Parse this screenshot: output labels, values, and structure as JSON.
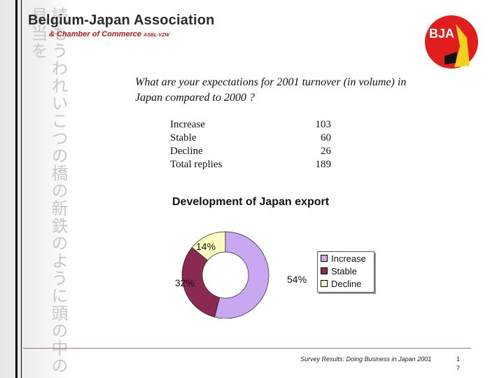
{
  "header": {
    "association_name": "Belgium-Japan Association",
    "association_sub": "& Chamber of Commerce",
    "association_sub_small": "ASBL-VZW",
    "logo_text": "BJA",
    "calligraphy": "読もうわれいこつの橋の新鉄のように頭の中の見当を"
  },
  "question": {
    "text": "What are your expectations for 2001 turnover (in volume) in Japan compared to 2000 ?"
  },
  "table": {
    "rows": [
      {
        "label": "Increase",
        "value": "103"
      },
      {
        "label": "Stable",
        "value": "60"
      },
      {
        "label": "Decline",
        "value": "26"
      },
      {
        "label": "Total replies",
        "value": "189"
      }
    ]
  },
  "chart_data": {
    "type": "pie",
    "variant": "donut",
    "title": "Development of Japan export",
    "categories": [
      "Increase",
      "Stable",
      "Decline"
    ],
    "values": [
      54,
      32,
      14
    ],
    "labels": [
      "54%",
      "32%",
      "14%"
    ],
    "colors": [
      "#c8a8f0",
      "#8a2a52",
      "#fdfcc0"
    ],
    "legend_position": "right"
  },
  "footer": {
    "source": "Survey Results: Doing Business in Japan 2001",
    "page_number": "17"
  }
}
